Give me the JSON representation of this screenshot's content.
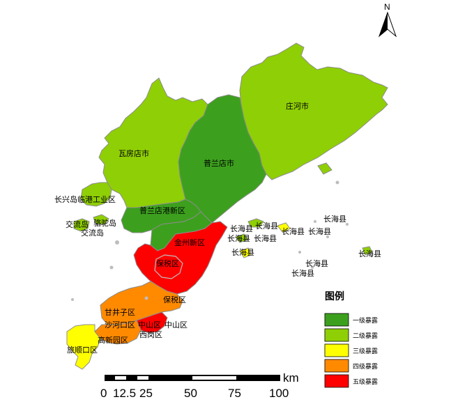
{
  "north_label": "N",
  "colors": {
    "level1": "#3CA01E",
    "level2": "#8FCF05",
    "level3": "#FFFF00",
    "level4": "#FF8A00",
    "level5": "#FF0000",
    "border": "#8c8c8c",
    "island": "#bdbdbd"
  },
  "regions": {
    "zhuanghe": "庄河市",
    "wafangdian": "瓦房店市",
    "pulandian": "普兰店市",
    "changxingdao": "长兴岛临港工业区",
    "jiaoliudao1": "交流岛",
    "jiaoliudao2": "交流岛",
    "tuotuodao": "骆驼岛",
    "pulandiangang": "普兰店港新区",
    "jinzhou": "金州新区",
    "baoshui1": "保税区",
    "baoshui2": "保税区",
    "ganjingzi": "甘井子区",
    "shahekou": "沙河口区",
    "zhongshan1": "中山区",
    "zhongshan2": "中山区",
    "xigang": "西岗区",
    "gaoxinyuan": "高新园区",
    "lvshunkou": "旅顺口区",
    "changhai": "长海县"
  },
  "legend": {
    "title": "图例",
    "items": [
      {
        "label": "一级暴露",
        "color": "#3CA01E"
      },
      {
        "label": "二级暴露",
        "color": "#8FCF05"
      },
      {
        "label": "三级暴露",
        "color": "#FFFF00"
      },
      {
        "label": "四级暴露",
        "color": "#FF8A00"
      },
      {
        "label": "五级暴露",
        "color": "#FF0000"
      }
    ]
  },
  "scale": {
    "unit": "km",
    "ticks": [
      "0",
      "12.5",
      "25",
      "50",
      "75",
      "100"
    ]
  }
}
